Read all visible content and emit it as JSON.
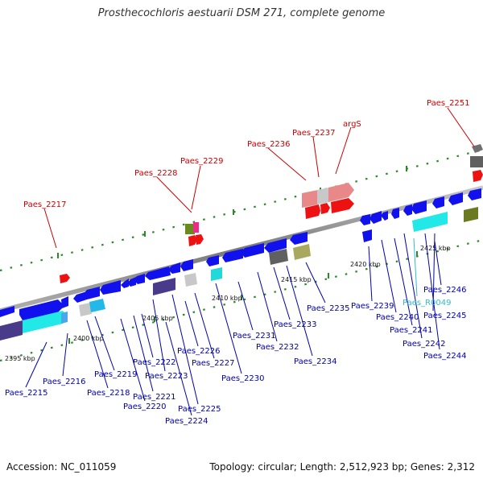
{
  "title": "Prosthecochloris aestuarii DSM 271, complete genome",
  "accession": "Accession: NC_011059",
  "topology": "Topology: circular; Length: 2,512,923 bp; Genes: 2,312",
  "colors": {
    "backbone": "#8a8a8a",
    "dots": "#2a8a2a",
    "forward_label": "#cc0000",
    "reverse_label": "#0000aa",
    "rna_label": "#33bbcc"
  },
  "scale_labels": [
    "2395 kbp",
    "2400 kbp",
    "2405 kbp",
    "2410 kbp",
    "2415 kbp",
    "2420 kbp",
    "2425 kbp"
  ],
  "forward_labels": [
    "Paes_2217",
    "Paes_2228",
    "Paes_2229",
    "Paes_2236",
    "Paes_2237",
    "argS",
    "Paes_2251"
  ],
  "reverse_labels": [
    "Paes_2215",
    "Paes_2216",
    "Paes_2218",
    "Paes_2219",
    "Paes_2220",
    "Paes_2221",
    "Paes_2222",
    "Paes_2223",
    "Paes_2224",
    "Paes_2225",
    "Paes_2226",
    "Paes_2227",
    "Paes_2230",
    "Paes_2231",
    "Paes_2232",
    "Paes_2233",
    "Paes_2234",
    "Paes_2235",
    "Paes_2239",
    "Paes_2240",
    "Paes_2241",
    "Paes_2242",
    "Paes_2244",
    "Paes_2245",
    "Paes_2246"
  ],
  "rna_labels": [
    "Paes_R0049"
  ]
}
